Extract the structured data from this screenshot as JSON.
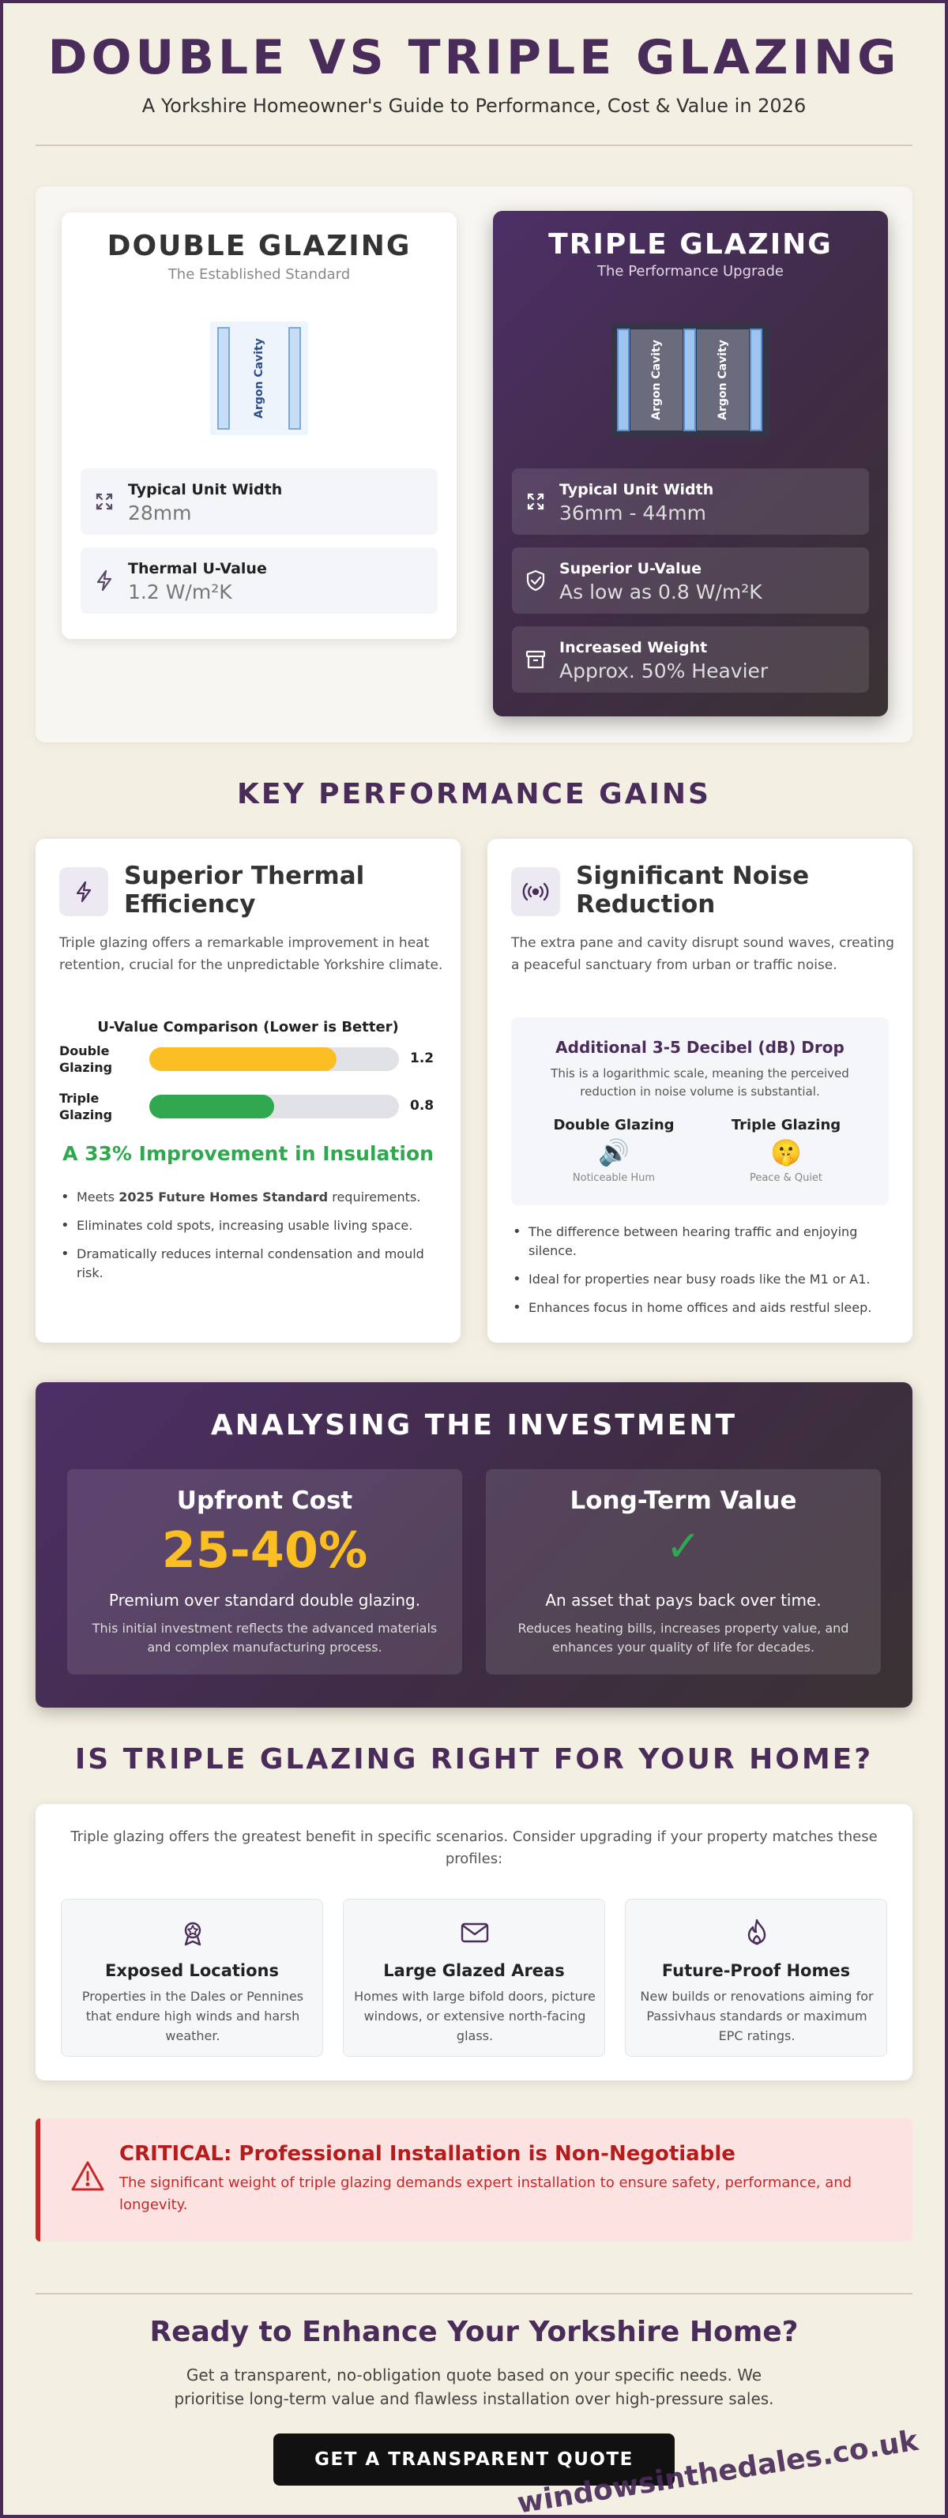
{
  "header": {
    "title": "DOUBLE VS TRIPLE GLAZING",
    "subtitle": "A Yorkshire Homeowner's Guide to Performance, Cost & Value in 2026"
  },
  "comparison": {
    "double": {
      "title": "DOUBLE GLAZING",
      "subtitle": "The Established Standard",
      "cavities": [
        "Argon Cavity"
      ],
      "specs": [
        {
          "label": "Typical Unit Width",
          "value": "28mm",
          "icon": "expand-icon"
        },
        {
          "label": "Thermal U-Value",
          "value": "1.2 W/m²K",
          "icon": "lightning-icon"
        }
      ]
    },
    "triple": {
      "title": "TRIPLE GLAZING",
      "subtitle": "The Performance Upgrade",
      "cavities": [
        "Argon Cavity",
        "Argon Cavity"
      ],
      "specs": [
        {
          "label": "Typical Unit Width",
          "value": "36mm - 44mm",
          "icon": "expand-icon"
        },
        {
          "label": "Superior U-Value",
          "value": "As low as 0.8 W/m²K",
          "icon": "shield-check-icon"
        },
        {
          "label": "Increased Weight",
          "value": "Approx. 50% Heavier",
          "icon": "archive-box-icon"
        }
      ]
    }
  },
  "performance": {
    "title": "KEY PERFORMANCE GAINS",
    "thermal": {
      "heading": "Superior Thermal Efficiency",
      "icon": "lightning-icon",
      "text": "Triple glazing offers a remarkable improvement in heat retention, crucial for the unpredictable Yorkshire climate.",
      "chart_title": "U-Value Comparison (Lower is Better)",
      "improvement": "A 33% Improvement in Insulation",
      "bullets": [
        {
          "pre": "Meets ",
          "bold": "2025 Future Homes Standard",
          "post": " requirements."
        },
        {
          "pre": "Eliminates cold spots, increasing usable living space.",
          "bold": "",
          "post": ""
        },
        {
          "pre": "Dramatically reduces internal condensation and mould risk.",
          "bold": "",
          "post": ""
        }
      ]
    },
    "noise": {
      "heading": "Significant Noise Reduction",
      "icon": "sound-wave-icon",
      "text": "The extra pane and cavity disrupt sound waves, creating a peaceful sanctuary from urban or traffic noise.",
      "box_title": "Additional 3-5 Decibel (dB) Drop",
      "box_text": "This is a logarithmic scale, meaning the perceived reduction in noise volume is substantial.",
      "double_label": "Double Glazing",
      "double_icon": "🔊",
      "double_caption": "Noticeable Hum",
      "triple_label": "Triple Glazing",
      "triple_icon": "🤫",
      "triple_caption": "Peace & Quiet",
      "bullets": [
        "The difference between hearing traffic and enjoying silence.",
        "Ideal for properties near busy roads like the M1 or A1.",
        "Enhances focus in home offices and aids restful sleep."
      ]
    }
  },
  "chart_data": {
    "type": "bar",
    "title": "U-Value Comparison (Lower is Better)",
    "categories": [
      "Double Glazing",
      "Triple Glazing"
    ],
    "values": [
      1.2,
      0.8
    ],
    "value_labels": [
      "1.2",
      "0.8"
    ],
    "colors": [
      "#fbbf24",
      "#2fa84f"
    ],
    "orientation": "horizontal",
    "xlim": [
      0,
      1.6
    ],
    "grid": false,
    "legend": "none"
  },
  "investment": {
    "title": "ANALYSING THE INVESTMENT",
    "upfront": {
      "heading": "Upfront Cost",
      "big": "25-40%",
      "main": "Premium over standard double glazing.",
      "sub": "This initial investment reflects the advanced materials and complex manufacturing process."
    },
    "longterm": {
      "heading": "Long-Term Value",
      "big": "✓",
      "main": "An asset that pays back over time.",
      "sub": "Reduces heating bills, increases property value, and enhances your quality of life for decades."
    }
  },
  "suitability": {
    "title": "IS TRIPLE GLAZING RIGHT FOR YOUR HOME?",
    "intro": "Triple glazing offers the greatest benefit in specific scenarios. Consider upgrading if your property matches these profiles:",
    "profiles": [
      {
        "title": "Exposed Locations",
        "text": "Properties in the Dales or Pennines that endure high winds and harsh weather.",
        "icon": "badge-icon"
      },
      {
        "title": "Large Glazed Areas",
        "text": "Homes with large bifold doors, picture windows, or extensive north-facing glass.",
        "icon": "envelope-icon"
      },
      {
        "title": "Future-Proof Homes",
        "text": "New builds or renovations aiming for Passivhaus standards or maximum EPC ratings.",
        "icon": "flame-icon"
      }
    ]
  },
  "warning": {
    "title": "CRITICAL: Professional Installation is Non-Negotiable",
    "text": "The significant weight of triple glazing demands expert installation to ensure safety, performance, and longevity.",
    "icon": "warning-triangle-icon"
  },
  "cta": {
    "title": "Ready to Enhance Your Yorkshire Home?",
    "text": "Get a transparent, no-obligation quote based on your specific needs. We prioritise long-term value and flawless installation over high-pressure sales.",
    "button": "GET A TRANSPARENT QUOTE"
  },
  "watermark": "windowsinthedales.co.uk",
  "colors": {
    "brand_purple": "#4a2c5a",
    "double_bar": "#fbbf24",
    "triple_bar": "#2fa84f",
    "improvement_green": "#2fa84f",
    "warning_red": "#c62828",
    "warning_bg": "#fde2e2"
  }
}
